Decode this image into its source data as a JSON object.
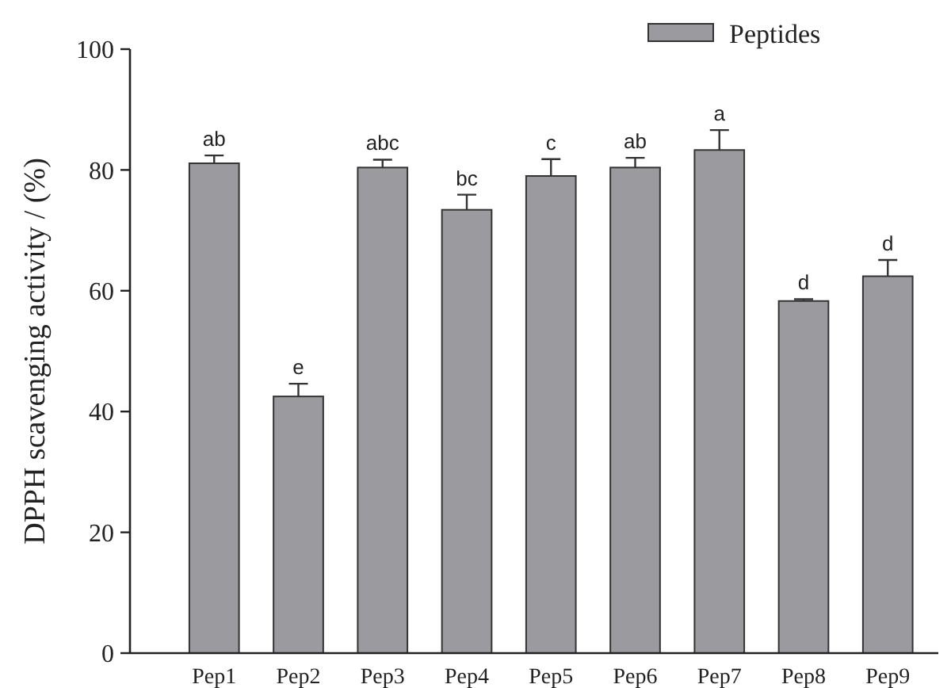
{
  "chart_data": {
    "type": "bar",
    "ylabel": "DPPH scavenging activity / (%)",
    "categories": [
      "Pep1",
      "Pep2",
      "Pep3",
      "Pep4",
      "Pep5",
      "Pep6",
      "Pep7",
      "Pep8",
      "Pep9"
    ],
    "series": [
      {
        "name": "Peptides",
        "color": "#9b9b9f",
        "values": [
          81.1,
          42.5,
          80.4,
          73.4,
          79.0,
          80.4,
          83.3,
          58.3,
          62.4
        ],
        "errors": [
          1.3,
          2.1,
          1.3,
          2.5,
          2.8,
          1.6,
          3.3,
          0.3,
          2.7
        ]
      }
    ],
    "ylim": [
      0,
      100
    ],
    "yticks": [
      0,
      20,
      40,
      60,
      80,
      100
    ],
    "grid": false,
    "legend": "top right",
    "annotations": [
      "ab",
      "e",
      "abc",
      "bc",
      "c",
      "ab",
      "a",
      "d",
      "d"
    ]
  }
}
